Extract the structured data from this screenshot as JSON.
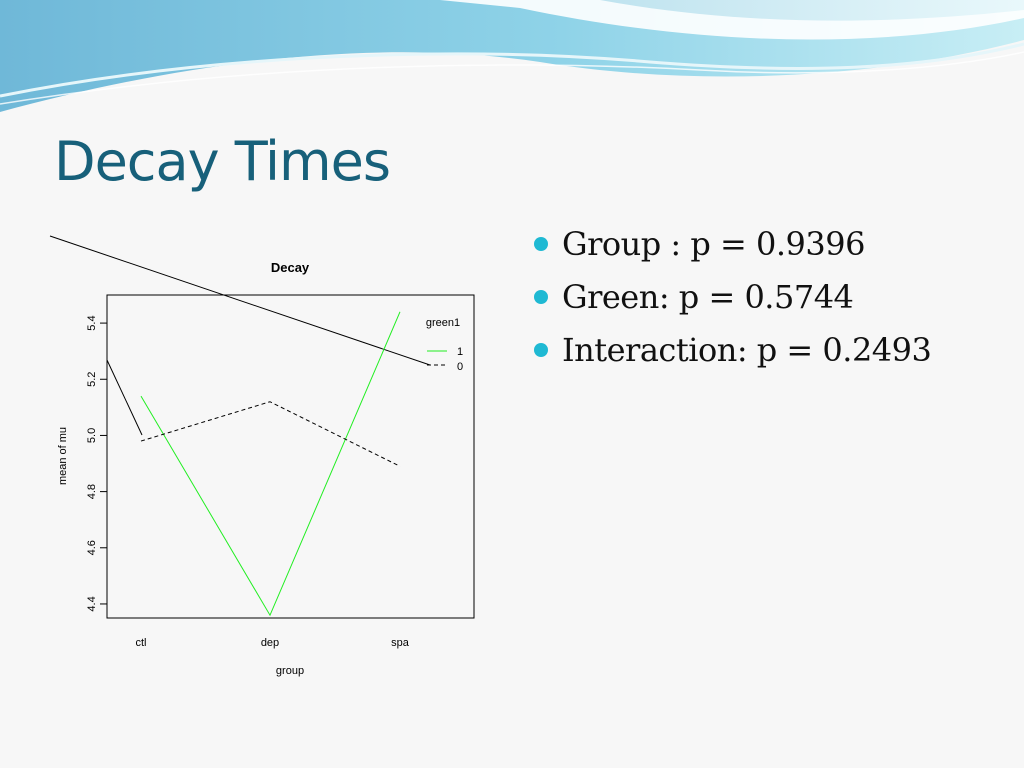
{
  "slide": {
    "title": "Decay Times",
    "accent_color": "#1fb9d3",
    "title_color": "#17607a",
    "bullets": [
      "Group : p =  0.9396",
      "Green: p = 0.5744",
      "Interaction: p = 0.2493"
    ]
  },
  "chart_data": {
    "type": "line",
    "title": "Decay",
    "xlabel": "group",
    "ylabel": "mean of mu",
    "categories": [
      "ctl",
      "dep",
      "spa"
    ],
    "ylim": [
      4.35,
      5.5
    ],
    "yticks": [
      "4.4",
      "4.6",
      "4.8",
      "5.0",
      "5.2",
      "5.4"
    ],
    "grid": false,
    "legend": {
      "title": "green1",
      "placement": "top-right",
      "entries": [
        "1",
        "0"
      ]
    },
    "series": [
      {
        "name": "1",
        "values": [
          5.14,
          4.36,
          5.44
        ],
        "color": "#22ee22",
        "dash": "solid"
      },
      {
        "name": "0",
        "values": [
          4.98,
          5.12,
          4.89
        ],
        "color": "#000000",
        "dash": "dashed"
      }
    ]
  }
}
